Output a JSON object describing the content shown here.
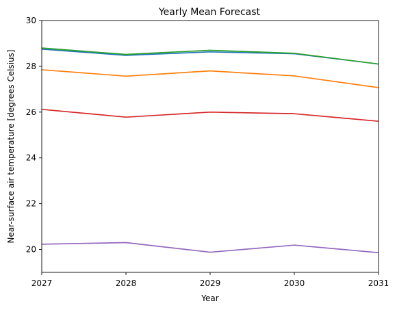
{
  "chart_data": {
    "type": "line",
    "title": "Yearly Mean Forecast",
    "xlabel": "Year",
    "ylabel": "Near-surface air temperature [degrees Celsius]",
    "x": [
      2027,
      2028,
      2029,
      2030,
      2031
    ],
    "x_tick_labels": [
      "2027",
      "2028",
      "2029",
      "2030",
      "2031"
    ],
    "y_ticks": [
      20,
      22,
      24,
      26,
      28,
      30
    ],
    "y_tick_labels": [
      "20",
      "22",
      "24",
      "26",
      "28",
      "30"
    ],
    "xlim": [
      2027,
      2031
    ],
    "ylim": [
      19.0,
      30.0
    ],
    "grid": false,
    "series": [
      {
        "color": "#1f77b4",
        "values": [
          28.75,
          28.48,
          28.63,
          28.55,
          28.1
        ]
      },
      {
        "color": "#ff7f0e",
        "values": [
          27.85,
          27.57,
          27.8,
          27.58,
          27.07
        ]
      },
      {
        "color": "#2ca02c",
        "values": [
          28.8,
          28.52,
          28.7,
          28.57,
          28.1
        ]
      },
      {
        "color": "#d62728",
        "values": [
          26.12,
          25.78,
          26.0,
          25.93,
          25.6
        ]
      },
      {
        "color": "#9467bd",
        "values": [
          20.23,
          20.3,
          19.88,
          20.19,
          19.86
        ]
      }
    ]
  }
}
